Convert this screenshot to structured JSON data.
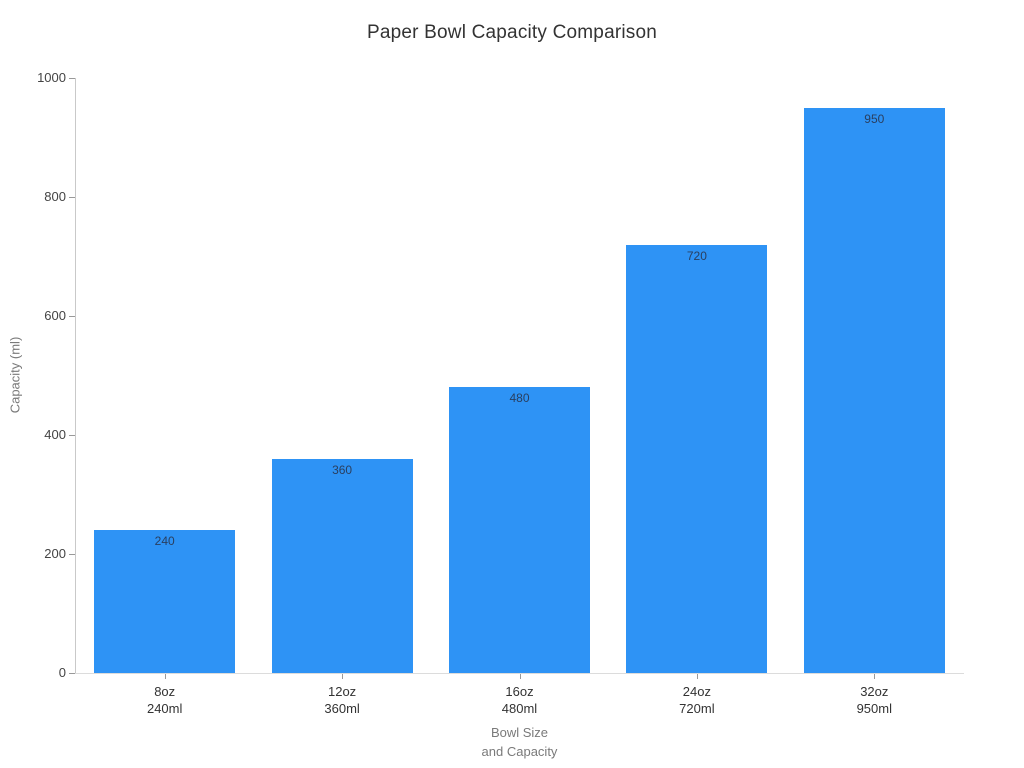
{
  "chart_data": {
    "type": "bar",
    "title": "Paper Bowl Capacity Comparison",
    "xlabel": "Bowl Size\nand Capacity",
    "ylabel": "Capacity (ml)",
    "categories": [
      {
        "size": "8oz",
        "capacity": "240ml"
      },
      {
        "size": "12oz",
        "capacity": "360ml"
      },
      {
        "size": "16oz",
        "capacity": "480ml"
      },
      {
        "size": "24oz",
        "capacity": "720ml"
      },
      {
        "size": "32oz",
        "capacity": "950ml"
      }
    ],
    "values": [
      240,
      360,
      480,
      720,
      950
    ],
    "ylim": [
      0,
      1000
    ],
    "yticks": [
      0,
      200,
      400,
      600,
      800,
      1000
    ],
    "grid": false,
    "legend": false,
    "bar_color": "#2E93F5",
    "value_label_color": "#2a3f5f"
  }
}
